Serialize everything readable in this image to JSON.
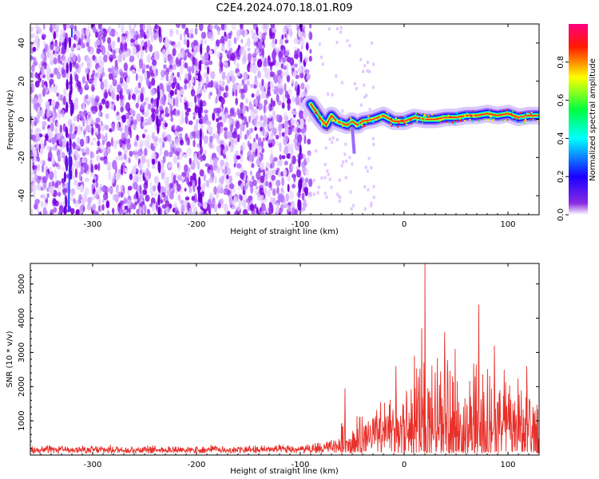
{
  "title": "C2E4.2024.070.18.01.R09",
  "chart_data": [
    {
      "type": "heatmap",
      "xlabel": "Height of straight line (km)",
      "ylabel": "Frequency (Hz)",
      "xlim": [
        -360,
        130
      ],
      "ylim": [
        -50,
        50
      ],
      "xticks": [
        -300,
        -200,
        -100,
        0,
        100
      ],
      "yticks": [
        -40,
        -20,
        0,
        20,
        40
      ],
      "colorbar": {
        "label": "Normalized spectral amplitude",
        "range": [
          0,
          1
        ],
        "ticks": [
          0.0,
          0.2,
          0.4,
          0.6,
          0.8
        ],
        "colors": [
          "#ffffff",
          "#8000ff",
          "#0000ff",
          "#00ffff",
          "#00ff00",
          "#ffff00",
          "#ff0000",
          "#ff0080"
        ]
      },
      "noise_region_x": [
        -360,
        -90
      ],
      "signal_track": [
        {
          "x": -90,
          "y": 8
        },
        {
          "x": -85,
          "y": 4
        },
        {
          "x": -80,
          "y": 0
        },
        {
          "x": -75,
          "y": -3
        },
        {
          "x": -70,
          "y": 2
        },
        {
          "x": -65,
          "y": -1
        },
        {
          "x": -60,
          "y": -2
        },
        {
          "x": -55,
          "y": -3
        },
        {
          "x": -50,
          "y": -1
        },
        {
          "x": -45,
          "y": -3
        },
        {
          "x": -40,
          "y": -1
        },
        {
          "x": -30,
          "y": 0
        },
        {
          "x": -20,
          "y": 2
        },
        {
          "x": -10,
          "y": -1
        },
        {
          "x": 0,
          "y": -1
        },
        {
          "x": 10,
          "y": 1
        },
        {
          "x": 20,
          "y": 0
        },
        {
          "x": 30,
          "y": 0
        },
        {
          "x": 40,
          "y": 1
        },
        {
          "x": 50,
          "y": 1
        },
        {
          "x": 60,
          "y": 2
        },
        {
          "x": 70,
          "y": 2
        },
        {
          "x": 80,
          "y": 3
        },
        {
          "x": 90,
          "y": 2
        },
        {
          "x": 100,
          "y": 3
        },
        {
          "x": 110,
          "y": 1
        },
        {
          "x": 120,
          "y": 2
        },
        {
          "x": 130,
          "y": 2
        }
      ]
    },
    {
      "type": "line",
      "xlabel": "Height of straight line (km)",
      "ylabel": "SNR (10 * v/v)",
      "xlim": [
        -360,
        130
      ],
      "ylim": [
        0,
        5600
      ],
      "xticks": [
        -300,
        -200,
        -100,
        0,
        100
      ],
      "yticks": [
        1000,
        2000,
        3000,
        4000,
        5000
      ],
      "color": "#e8302a",
      "envelope": [
        {
          "x": -360,
          "base": 150,
          "amp": 150
        },
        {
          "x": -100,
          "base": 160,
          "amp": 160
        },
        {
          "x": -68,
          "base": 200,
          "amp": 300
        },
        {
          "x": -60,
          "base": 350,
          "amp": 700
        },
        {
          "x": -40,
          "base": 450,
          "amp": 900
        },
        {
          "x": -20,
          "base": 600,
          "amp": 1100
        },
        {
          "x": 0,
          "base": 700,
          "amp": 1500
        },
        {
          "x": 20,
          "base": 900,
          "amp": 2300
        },
        {
          "x": 50,
          "base": 900,
          "amp": 2500
        },
        {
          "x": 80,
          "base": 800,
          "amp": 2100
        },
        {
          "x": 130,
          "base": 800,
          "amp": 1500
        }
      ],
      "peaks": [
        {
          "x": -57,
          "y": 1950
        },
        {
          "x": -8,
          "y": 2600
        },
        {
          "x": 10,
          "y": 2900
        },
        {
          "x": 17,
          "y": 3700
        },
        {
          "x": 20,
          "y": 5650
        },
        {
          "x": 39,
          "y": 3600
        },
        {
          "x": 49,
          "y": 3100
        },
        {
          "x": 72,
          "y": 4400
        },
        {
          "x": 87,
          "y": 3200
        },
        {
          "x": 118,
          "y": 2600
        }
      ]
    }
  ]
}
